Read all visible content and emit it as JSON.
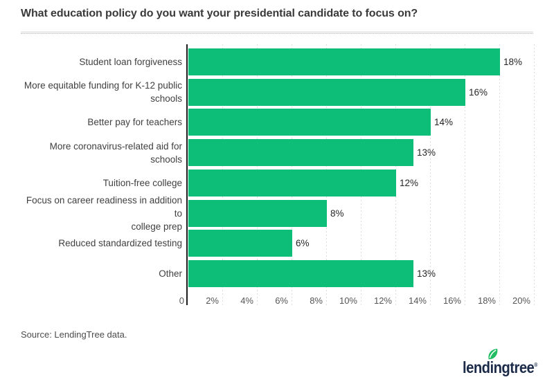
{
  "title": "What education policy do you want your presidential candidate to focus on?",
  "source": "Source: LendingTree data.",
  "logo": {
    "text": "lendingtree",
    "registered": "®"
  },
  "colors": {
    "bar": "#0dbe78",
    "axis_line": "#1c1c1c",
    "gridline": "#dcdcdc",
    "title_text": "#3a3a3a",
    "category_text": "#404040",
    "value_text": "#262626",
    "tick_text": "#565656",
    "source_text": "#4c4c4c",
    "logo_navy": "#1b2a48",
    "logo_leaf_green": "#22bd62"
  },
  "chart_data": {
    "type": "bar",
    "orientation": "horizontal",
    "title": "What education policy do you want your presidential candidate to focus on?",
    "categories": [
      "Student loan forgiveness",
      "More equitable funding for K-12 public\nschools",
      "Better pay for teachers",
      "More coronavirus-related aid for schools",
      "Tuition-free college",
      "Focus on career readiness in addition to\ncollege prep",
      "Reduced standardized testing",
      "Other"
    ],
    "values": [
      18,
      16,
      14,
      13,
      12,
      8,
      6,
      13
    ],
    "value_labels": [
      "18%",
      "16%",
      "14%",
      "13%",
      "12%",
      "8%",
      "6%",
      "13%"
    ],
    "xlabel": "",
    "ylabel": "",
    "xlim": [
      0,
      20
    ],
    "xticks": [
      {
        "v": 0,
        "label": "0"
      },
      {
        "v": 2,
        "label": "2%"
      },
      {
        "v": 4,
        "label": "4%"
      },
      {
        "v": 6,
        "label": "6%"
      },
      {
        "v": 8,
        "label": "8%"
      },
      {
        "v": 10,
        "label": "10%"
      },
      {
        "v": 12,
        "label": "12%"
      },
      {
        "v": 14,
        "label": "14%"
      },
      {
        "v": 16,
        "label": "16%"
      },
      {
        "v": 18,
        "label": "18%"
      },
      {
        "v": 20,
        "label": "20%"
      }
    ],
    "grid": "vertical-dashed",
    "legend": "none"
  }
}
